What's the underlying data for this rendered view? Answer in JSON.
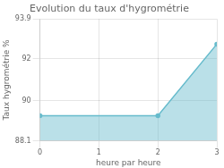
{
  "chart_data": {
    "type": "area",
    "title": "Evolution du taux d'hygrométrie",
    "xlabel": "heure par heure",
    "ylabel": "Taux hygrométrie %",
    "x": [
      0,
      2,
      3
    ],
    "values": [
      89.3,
      89.3,
      92.7
    ],
    "color": "#66bbcc",
    "xlim": [
      0,
      3
    ],
    "ylim": [
      88.1,
      93.9
    ],
    "xticks": [
      0,
      1,
      2,
      3
    ],
    "yticks": [
      88.1,
      90.0,
      92.0,
      93.9
    ],
    "grid": true
  }
}
